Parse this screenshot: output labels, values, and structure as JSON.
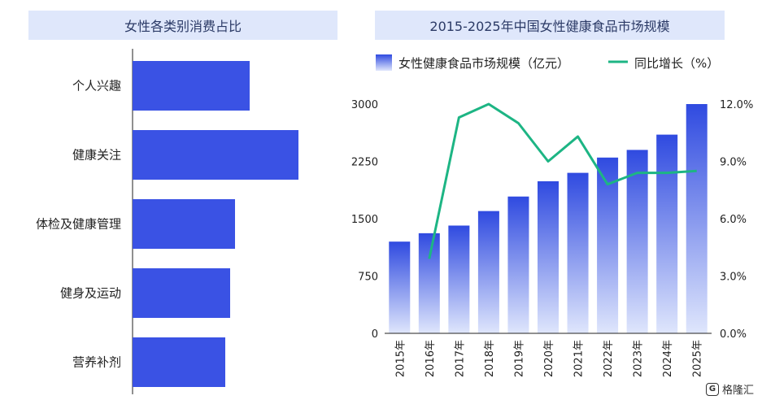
{
  "left_title": "女性各类别消费占比",
  "right_title": "2015-2025年中国女性健康食品市场规模",
  "logo_text": "格隆汇",
  "chart_data": [
    {
      "type": "bar",
      "orientation": "horizontal",
      "title": "女性各类别消费占比",
      "categories": [
        "个人兴趣",
        "健康关注",
        "体检及健康管理",
        "健身及运动",
        "营养补剂"
      ],
      "values": [
        24,
        34,
        21,
        20,
        19
      ],
      "value_axis": "not shown",
      "colors": {
        "bar": "#3a52e4"
      }
    },
    {
      "type": "bar+line",
      "title": "2015-2025年中国女性健康食品市场规模",
      "categories": [
        "2015年",
        "2016年",
        "2017年",
        "2018年",
        "2019年",
        "2020年",
        "2021年",
        "2022年",
        "2023年",
        "2024年",
        "2025年"
      ],
      "series": [
        {
          "name": "女性健康食品市场规模（亿元）",
          "type": "bar",
          "axis": "left",
          "values": [
            1200,
            1310,
            1410,
            1600,
            1790,
            1990,
            2100,
            2300,
            2400,
            2600,
            3000
          ]
        },
        {
          "name": "同比增长（%）",
          "type": "line",
          "axis": "right",
          "values": [
            null,
            3.9,
            11.3,
            12.0,
            11.0,
            9.0,
            10.3,
            7.8,
            8.4,
            8.4,
            8.5
          ]
        }
      ],
      "y_left": {
        "min": 0,
        "max": 3000,
        "ticks": [
          "0",
          "750",
          "1500",
          "2250",
          "3000"
        ]
      },
      "y_right": {
        "min": 0,
        "max": 12,
        "ticks": [
          "0.0%",
          "3.0%",
          "6.0%",
          "9.0%",
          "12.0%"
        ]
      },
      "legend": "top",
      "grid": false,
      "colors": {
        "bar_top": "#2f4ae0",
        "bar_bottom": "#dfe6fc",
        "line": "#1db584"
      }
    }
  ]
}
